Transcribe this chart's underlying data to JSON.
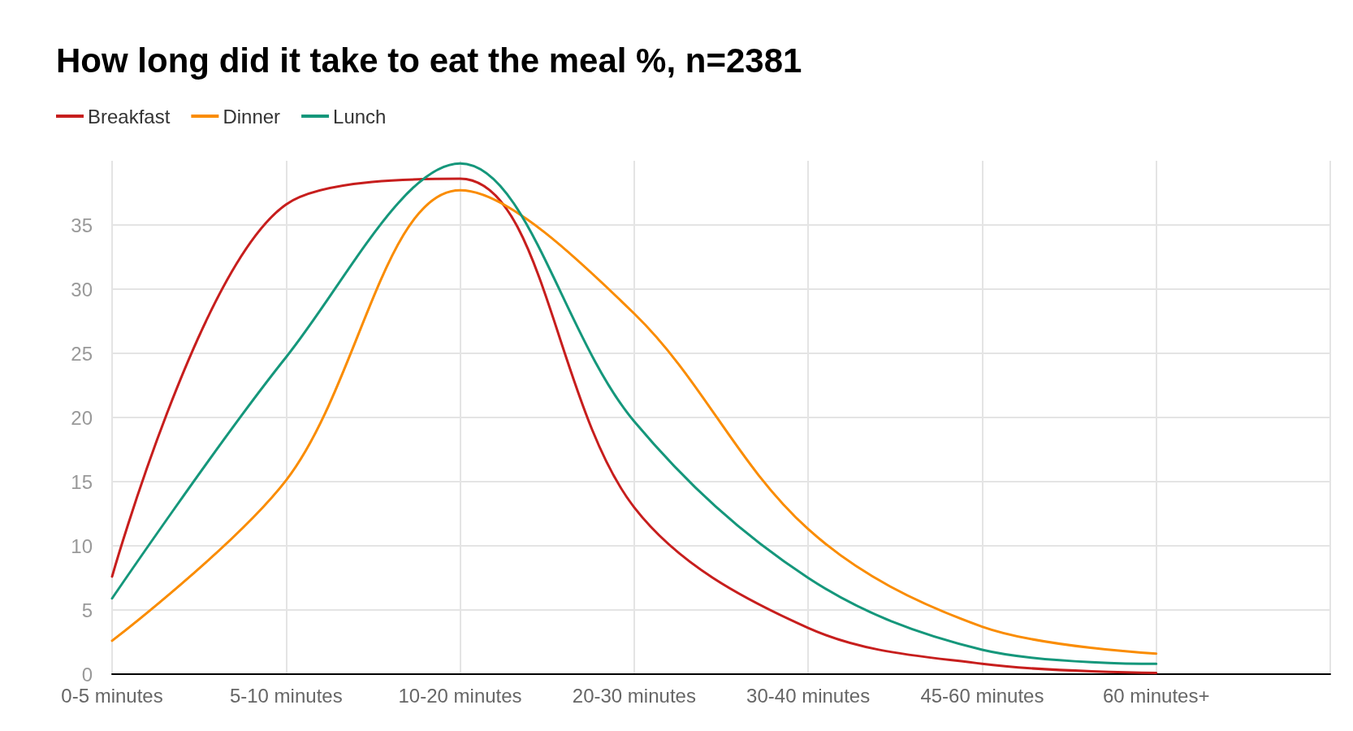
{
  "chart_data": {
    "type": "line",
    "title": "How long did it take to eat the meal %, n=2381",
    "categories": [
      "0-5 minutes",
      "5-10 minutes",
      "10-20 minutes",
      "20-30 minutes",
      "30-40 minutes",
      "45-60 minutes",
      "60 minutes+",
      null
    ],
    "series": [
      {
        "name": "Breakfast",
        "color": "#c71e1d",
        "values": [
          7.6,
          36.6,
          38.6,
          13.0,
          3.6,
          0.8,
          0.1,
          null
        ]
      },
      {
        "name": "Dinner",
        "color": "#fa8c00",
        "values": [
          2.6,
          15.1,
          37.7,
          28.1,
          11.3,
          3.7,
          1.6,
          null
        ]
      },
      {
        "name": "Lunch",
        "color": "#15977b",
        "values": [
          5.9,
          24.7,
          39.8,
          19.7,
          7.5,
          1.9,
          0.8,
          null
        ]
      }
    ],
    "ylim": [
      0,
      40
    ],
    "yticks": [
      0,
      5,
      10,
      15,
      20,
      25,
      30,
      35
    ],
    "grid": true,
    "legend": "top left",
    "marker": "none",
    "line_style": "solid"
  }
}
